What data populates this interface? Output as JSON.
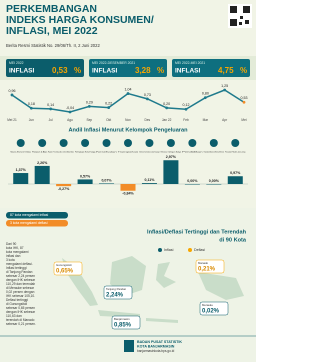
{
  "header": {
    "title_lines": [
      "PERKEMBANGAN",
      "INDEKS HARGA KONSUMEN/",
      "INFLASI, MEI 2022"
    ],
    "subtitle": "Berita Resmi Statistik No. 29/06/Th. II, 2 Juni 2022"
  },
  "summary": [
    {
      "period": "MEI 2022",
      "label": "INFLASI",
      "value": "0,53",
      "unit": "%"
    },
    {
      "period": "MEI 2022-DESEMBER 2021",
      "label": "INFLASI",
      "value": "3,28",
      "unit": "%"
    },
    {
      "period": "MEI 2022-MEI 2021",
      "label": "INFLASI",
      "value": "4,75",
      "unit": "%"
    }
  ],
  "chart_data": [
    {
      "type": "line",
      "color": "#1f7a8c",
      "categories": [
        "Mei 21",
        "Jun",
        "Jul",
        "Agu",
        "Sep",
        "Okt",
        "Nov",
        "Des",
        "Jan 22",
        "Feb",
        "Mar",
        "Apr",
        "Mei"
      ],
      "values": [
        0.96,
        0.18,
        0.14,
        -0.04,
        0.29,
        0.22,
        1.04,
        0.73,
        0.2,
        0.12,
        0.8,
        1.25,
        0.53
      ],
      "value_labels": [
        "0,96",
        "0,18",
        "0,14",
        "-0,04",
        "0,29",
        "0,22",
        "1,04",
        "0,73",
        "0,20",
        "0,12",
        "0,80",
        "1,25",
        "0,53"
      ]
    },
    {
      "type": "bar",
      "title": "Andil Inflasi Menurut Kelompok Pengeluaran",
      "color": "#0b5d6b",
      "negative_color": "#f28c28",
      "categories": [
        "Makanan, Minuman & Tembakau",
        "Pakaian & Alas Kaki",
        "Perumahan, Air, Listrik & Bahan Bakar",
        "Perlengkapan Rumah Tangga",
        "Kesehatan",
        "Transportasi",
        "Informasi, Komunikasi & Jasa Keuangan",
        "Rekreasi, Olahraga & Budaya",
        "Pendidikan",
        "Penyediaan Makanan & Minuman/Restoran",
        "Perawatan Pribadi & Jasa Lainnya"
      ],
      "values": [
        1.37,
        2.26,
        -0.27,
        0.57,
        0.07,
        -0.84,
        0.11,
        2.97,
        0.0,
        0.0,
        0.97
      ],
      "value_labels": [
        "1,37%",
        "2,26%",
        "-0,27%",
        "0,57%",
        "0,07%",
        "-0,84%",
        "0,11%",
        "2,97%",
        "0,00%",
        "0,00%",
        "0,97%"
      ]
    }
  ],
  "counts": [
    "87 kota mengalami inflasi",
    "3 kota mengalami deflasi"
  ],
  "map": {
    "title_lines": [
      "Inflasi/Deflasi Tertinggi dan Terendah",
      "di 90 Kota"
    ],
    "legend": [
      "Inflasi",
      "Deflasi"
    ],
    "paragraph": [
      "Dari 90",
      "kota IHK, 87",
      "kota mengalami",
      "inflasi dan",
      "3 kota",
      "mengalami deflasi.",
      "Inflasi tertinggi",
      "di Tanjung Pandan",
      "sebesar 2,24 persen",
      "dengan IHK sebesar",
      "110,29 dan terendah",
      "di Merauke sebesar",
      "0,02 persen dengan",
      "IHK sebesar 105,10.",
      "Deflasi tertinggi",
      "di Gunungsitoli",
      "sebesar 0,65 persen",
      "dengan IHK sebesar",
      "110,63 dan",
      "terendah di Manado",
      "sebesar 0,21 persen."
    ],
    "callouts": [
      {
        "city": "Gunungsitoli",
        "value": "0,65%"
      },
      {
        "city": "Tanjung Pandan",
        "value": "2,24%"
      },
      {
        "city": "Manado",
        "value": "0,21%"
      },
      {
        "city": "Merauke",
        "value": "0,02%"
      },
      {
        "city": "Banjarmasin",
        "value": "0,85%"
      }
    ]
  },
  "footer": {
    "org": "BADAN PUSAT STATISTIK",
    "unit": "KOTA BANJARMASIN",
    "url": "banjarmasinkota.bps.go.id"
  }
}
